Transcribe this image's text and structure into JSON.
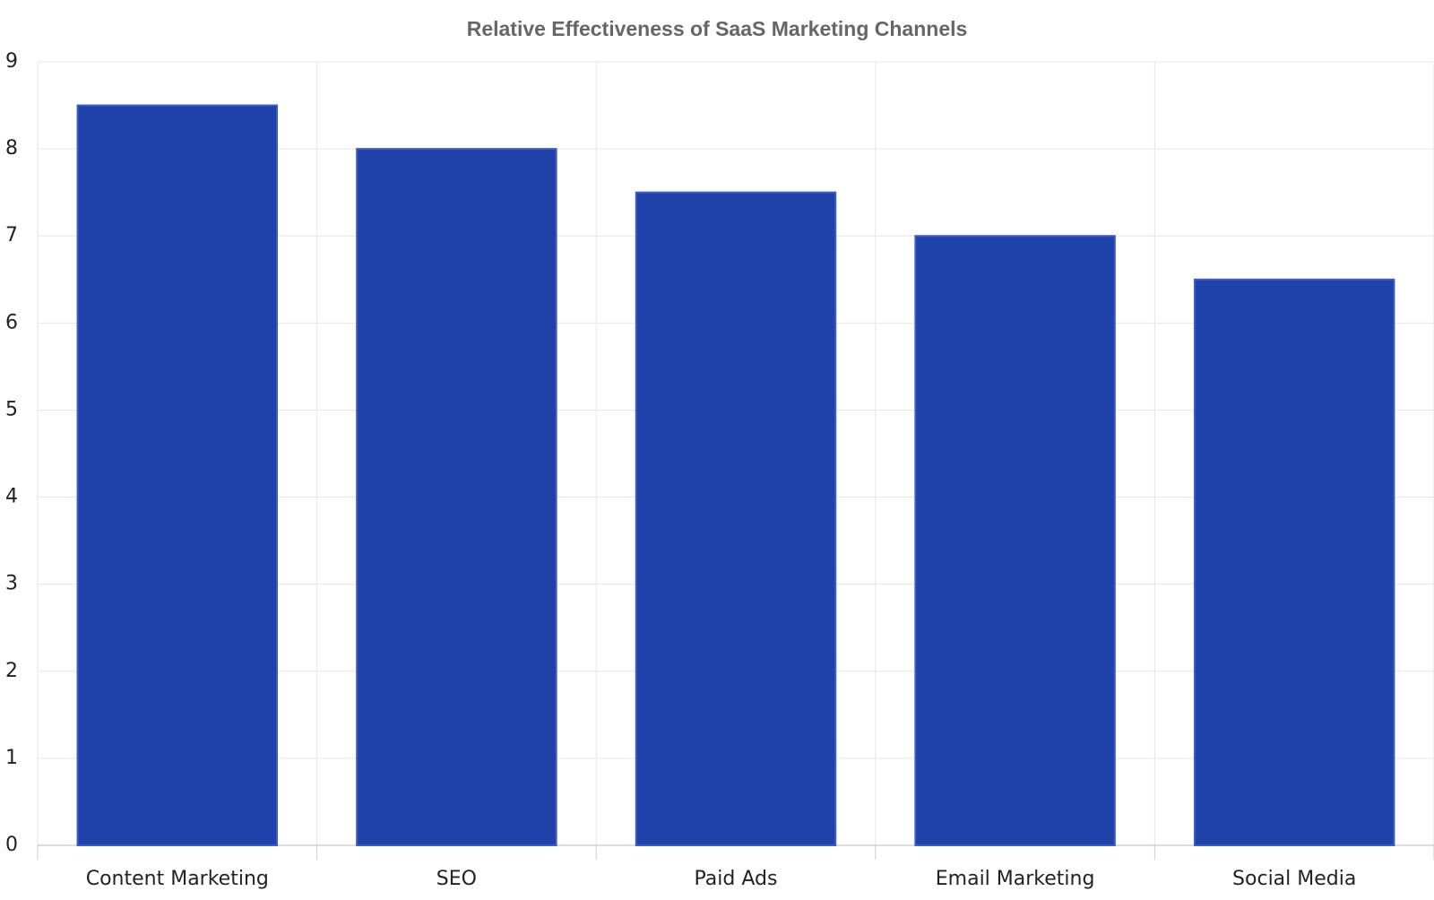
{
  "chart_data": {
    "type": "bar",
    "title": "Relative Effectiveness of SaaS Marketing Channels",
    "categories": [
      "Content Marketing",
      "SEO",
      "Paid Ads",
      "Email Marketing",
      "Social Media"
    ],
    "values": [
      8.5,
      8,
      7.5,
      7,
      6.5
    ],
    "color": "#1f41aa",
    "ylim": [
      0,
      9
    ],
    "yticks": [
      0,
      1,
      2,
      3,
      4,
      5,
      6,
      7,
      8,
      9
    ],
    "grid": true
  }
}
